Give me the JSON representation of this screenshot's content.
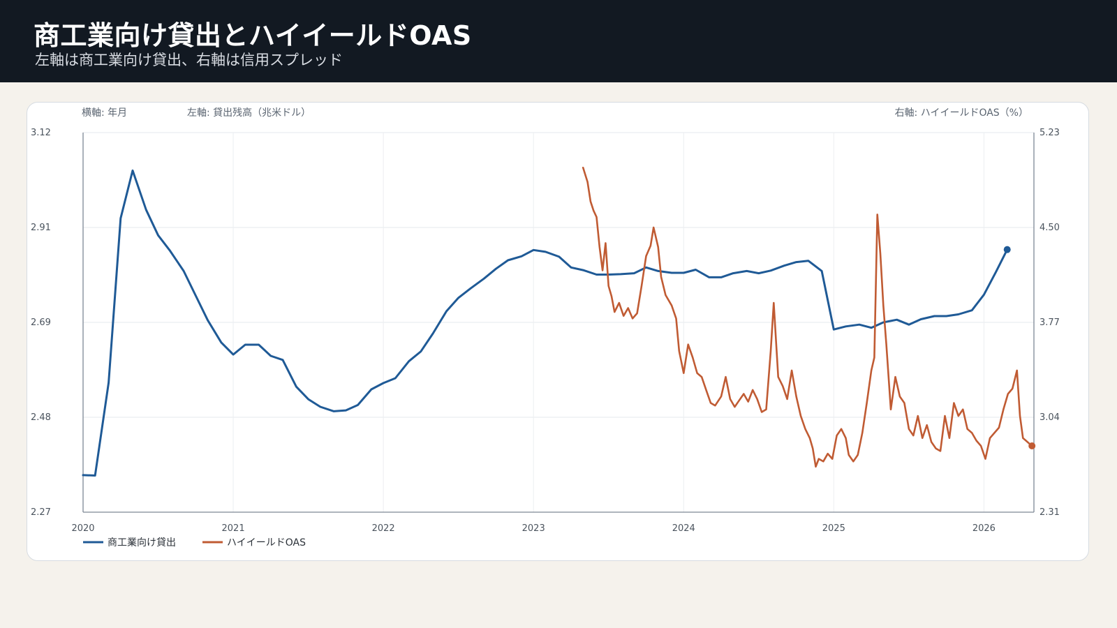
{
  "header": {
    "title": "商工業向け貸出とハイイールドOAS",
    "subtitle": "左軸は商工業向け貸出、右軸は信用スプレッド"
  },
  "chart_data": {
    "type": "line",
    "xlabel": "横軸: 年月",
    "ylabel_left": "左軸: 貸出残高（兆米ドル）",
    "ylabel_right": "右軸: ハイイールドOAS（%）",
    "x_ticks": [
      "2020",
      "2021",
      "2022",
      "2023",
      "2024",
      "2025",
      "2026"
    ],
    "y_left_ticks": [
      "3.12",
      "2.91",
      "2.69",
      "2.48",
      "2.27"
    ],
    "y_right_ticks": [
      "5.23",
      "4.50",
      "3.77",
      "3.04",
      "2.31"
    ],
    "y_left_range": [
      2.27,
      3.12
    ],
    "y_right_range": [
      2.31,
      5.23
    ],
    "x_range": [
      2020.0,
      2026.333
    ],
    "legend_position": "bottom-left",
    "grid": true,
    "series": [
      {
        "name": "商工業向け貸出",
        "axis": "left",
        "color": "#1f5a96",
        "points": [
          [
            2020.0,
            2.353
          ],
          [
            2020.08,
            2.352
          ],
          [
            2020.17,
            2.56
          ],
          [
            2020.25,
            2.928
          ],
          [
            2020.33,
            3.035
          ],
          [
            2020.42,
            2.947
          ],
          [
            2020.5,
            2.89
          ],
          [
            2020.58,
            2.855
          ],
          [
            2020.67,
            2.81
          ],
          [
            2020.75,
            2.755
          ],
          [
            2020.83,
            2.7
          ],
          [
            2020.92,
            2.65
          ],
          [
            2021.0,
            2.623
          ],
          [
            2021.08,
            2.645
          ],
          [
            2021.17,
            2.645
          ],
          [
            2021.25,
            2.62
          ],
          [
            2021.33,
            2.611
          ],
          [
            2021.42,
            2.551
          ],
          [
            2021.5,
            2.523
          ],
          [
            2021.58,
            2.506
          ],
          [
            2021.67,
            2.496
          ],
          [
            2021.75,
            2.498
          ],
          [
            2021.83,
            2.51
          ],
          [
            2021.92,
            2.545
          ],
          [
            2022.0,
            2.559
          ],
          [
            2022.08,
            2.57
          ],
          [
            2022.17,
            2.608
          ],
          [
            2022.25,
            2.63
          ],
          [
            2022.33,
            2.67
          ],
          [
            2022.42,
            2.72
          ],
          [
            2022.5,
            2.75
          ],
          [
            2022.58,
            2.771
          ],
          [
            2022.67,
            2.793
          ],
          [
            2022.75,
            2.815
          ],
          [
            2022.83,
            2.834
          ],
          [
            2022.92,
            2.843
          ],
          [
            2023.0,
            2.857
          ],
          [
            2023.08,
            2.853
          ],
          [
            2023.17,
            2.842
          ],
          [
            2023.25,
            2.818
          ],
          [
            2023.33,
            2.812
          ],
          [
            2023.42,
            2.802
          ],
          [
            2023.5,
            2.802
          ],
          [
            2023.58,
            2.803
          ],
          [
            2023.67,
            2.805
          ],
          [
            2023.75,
            2.818
          ],
          [
            2023.83,
            2.81
          ],
          [
            2023.92,
            2.806
          ],
          [
            2024.0,
            2.806
          ],
          [
            2024.08,
            2.813
          ],
          [
            2024.17,
            2.796
          ],
          [
            2024.25,
            2.796
          ],
          [
            2024.33,
            2.805
          ],
          [
            2024.42,
            2.81
          ],
          [
            2024.5,
            2.805
          ],
          [
            2024.58,
            2.811
          ],
          [
            2024.67,
            2.822
          ],
          [
            2024.75,
            2.83
          ],
          [
            2024.83,
            2.833
          ],
          [
            2024.92,
            2.81
          ],
          [
            2025.0,
            2.679
          ],
          [
            2025.08,
            2.686
          ],
          [
            2025.17,
            2.69
          ],
          [
            2025.25,
            2.683
          ],
          [
            2025.33,
            2.695
          ],
          [
            2025.42,
            2.701
          ],
          [
            2025.5,
            2.69
          ],
          [
            2025.58,
            2.702
          ],
          [
            2025.67,
            2.709
          ],
          [
            2025.75,
            2.709
          ],
          [
            2025.83,
            2.713
          ],
          [
            2025.92,
            2.722
          ],
          [
            2026.0,
            2.757
          ],
          [
            2026.08,
            2.808
          ],
          [
            2026.155,
            2.858
          ]
        ]
      },
      {
        "name": "ハイイールドOAS",
        "axis": "right",
        "color": "#c05b33",
        "points": [
          [
            2023.33,
            4.96
          ],
          [
            2023.36,
            4.85
          ],
          [
            2023.38,
            4.7
          ],
          [
            2023.4,
            4.63
          ],
          [
            2023.42,
            4.58
          ],
          [
            2023.44,
            4.35
          ],
          [
            2023.46,
            4.17
          ],
          [
            2023.48,
            4.38
          ],
          [
            2023.5,
            4.05
          ],
          [
            2023.52,
            3.97
          ],
          [
            2023.54,
            3.85
          ],
          [
            2023.57,
            3.92
          ],
          [
            2023.6,
            3.82
          ],
          [
            2023.63,
            3.88
          ],
          [
            2023.66,
            3.8
          ],
          [
            2023.69,
            3.84
          ],
          [
            2023.72,
            4.05
          ],
          [
            2023.75,
            4.28
          ],
          [
            2023.78,
            4.36
          ],
          [
            2023.8,
            4.5
          ],
          [
            2023.83,
            4.35
          ],
          [
            2023.85,
            4.12
          ],
          [
            2023.88,
            3.98
          ],
          [
            2023.92,
            3.9
          ],
          [
            2023.95,
            3.8
          ],
          [
            2023.97,
            3.55
          ],
          [
            2024.0,
            3.38
          ],
          [
            2024.03,
            3.6
          ],
          [
            2024.06,
            3.5
          ],
          [
            2024.09,
            3.38
          ],
          [
            2024.12,
            3.35
          ],
          [
            2024.15,
            3.25
          ],
          [
            2024.18,
            3.15
          ],
          [
            2024.21,
            3.13
          ],
          [
            2024.25,
            3.2
          ],
          [
            2024.28,
            3.35
          ],
          [
            2024.31,
            3.18
          ],
          [
            2024.34,
            3.12
          ],
          [
            2024.37,
            3.17
          ],
          [
            2024.4,
            3.22
          ],
          [
            2024.43,
            3.16
          ],
          [
            2024.46,
            3.25
          ],
          [
            2024.49,
            3.18
          ],
          [
            2024.52,
            3.08
          ],
          [
            2024.55,
            3.1
          ],
          [
            2024.58,
            3.55
          ],
          [
            2024.6,
            3.92
          ],
          [
            2024.63,
            3.35
          ],
          [
            2024.66,
            3.28
          ],
          [
            2024.69,
            3.18
          ],
          [
            2024.72,
            3.4
          ],
          [
            2024.75,
            3.2
          ],
          [
            2024.78,
            3.05
          ],
          [
            2024.81,
            2.95
          ],
          [
            2024.84,
            2.88
          ],
          [
            2024.86,
            2.8
          ],
          [
            2024.88,
            2.66
          ],
          [
            2024.9,
            2.72
          ],
          [
            2024.93,
            2.7
          ],
          [
            2024.96,
            2.76
          ],
          [
            2024.99,
            2.72
          ],
          [
            2025.02,
            2.9
          ],
          [
            2025.05,
            2.95
          ],
          [
            2025.08,
            2.88
          ],
          [
            2025.1,
            2.75
          ],
          [
            2025.13,
            2.7
          ],
          [
            2025.16,
            2.75
          ],
          [
            2025.19,
            2.92
          ],
          [
            2025.22,
            3.15
          ],
          [
            2025.25,
            3.4
          ],
          [
            2025.27,
            3.5
          ],
          [
            2025.29,
            4.6
          ],
          [
            2025.31,
            4.3
          ],
          [
            2025.33,
            3.9
          ],
          [
            2025.35,
            3.6
          ],
          [
            2025.38,
            3.1
          ],
          [
            2025.41,
            3.35
          ],
          [
            2025.44,
            3.2
          ],
          [
            2025.47,
            3.15
          ],
          [
            2025.5,
            2.95
          ],
          [
            2025.53,
            2.9
          ],
          [
            2025.56,
            3.05
          ],
          [
            2025.59,
            2.88
          ],
          [
            2025.62,
            2.98
          ],
          [
            2025.65,
            2.85
          ],
          [
            2025.68,
            2.8
          ],
          [
            2025.71,
            2.78
          ],
          [
            2025.74,
            3.05
          ],
          [
            2025.77,
            2.88
          ],
          [
            2025.8,
            3.15
          ],
          [
            2025.83,
            3.05
          ],
          [
            2025.86,
            3.1
          ],
          [
            2025.89,
            2.95
          ],
          [
            2025.92,
            2.92
          ],
          [
            2025.95,
            2.86
          ],
          [
            2025.98,
            2.82
          ],
          [
            2026.01,
            2.72
          ],
          [
            2026.04,
            2.88
          ],
          [
            2026.07,
            2.92
          ],
          [
            2026.1,
            2.96
          ],
          [
            2026.13,
            3.1
          ],
          [
            2026.16,
            3.22
          ],
          [
            2026.19,
            3.26
          ],
          [
            2026.22,
            3.4
          ],
          [
            2026.24,
            3.05
          ],
          [
            2026.26,
            2.88
          ],
          [
            2026.28,
            2.86
          ],
          [
            2026.3,
            2.84
          ],
          [
            2026.32,
            2.82
          ]
        ]
      }
    ]
  }
}
